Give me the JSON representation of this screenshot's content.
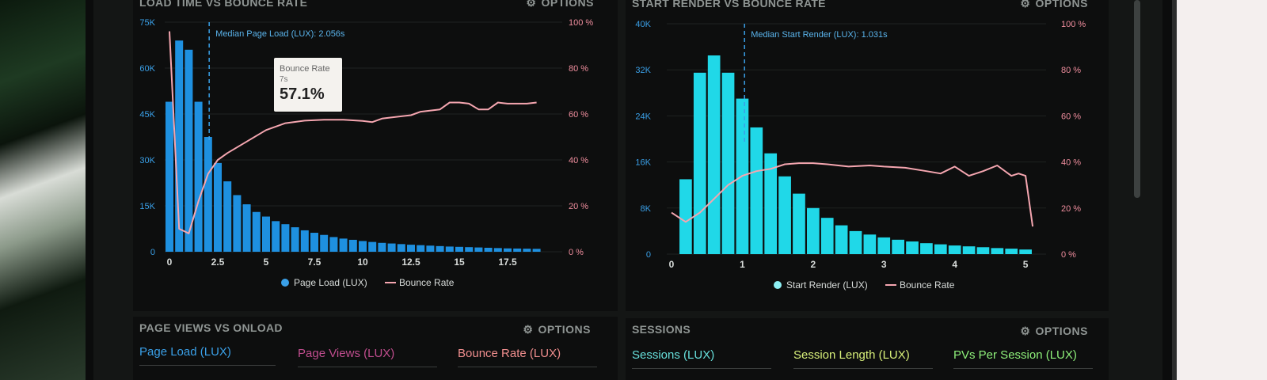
{
  "panels": {
    "load": {
      "title": "LOAD TIME VS BOUNCE RATE",
      "options": "OPTIONS"
    },
    "start": {
      "title": "START RENDER VS BOUNCE RATE",
      "options": "OPTIONS"
    },
    "pageviews": {
      "title": "PAGE VIEWS VS ONLOAD",
      "options": "OPTIONS",
      "tabs": [
        {
          "label": "Page Load (LUX)",
          "color": "#3aa0e8"
        },
        {
          "label": "Page Views (LUX)",
          "color": "#c04d8e"
        },
        {
          "label": "Bounce Rate (LUX)",
          "color": "#f08e8e"
        }
      ]
    },
    "sessions": {
      "title": "SESSIONS",
      "options": "OPTIONS",
      "tabs": [
        {
          "label": "Sessions (LUX)",
          "color": "#67e0dc"
        },
        {
          "label": "Session Length (LUX)",
          "color": "#d8f07a"
        },
        {
          "label": "PVs Per Session (LUX)",
          "color": "#8ef07a"
        }
      ]
    }
  },
  "tooltip": {
    "label": "Bounce Rate",
    "sub": "7s",
    "value": "57.1%"
  },
  "colors": {
    "bar_blue": "#1e90e0",
    "bar_cyan": "#20d8e8",
    "line_pink": "#f5a6b0",
    "axis_text_left": "#3aa0e8",
    "axis_text_right": "#f08e9e"
  },
  "chart_data": [
    {
      "type": "bar",
      "title": "LOAD TIME VS BOUNCE RATE",
      "annotation": "Median Page Load (LUX): 2.056s",
      "median": 2.056,
      "x_ticks": [
        "0",
        "2.5",
        "5",
        "7.5",
        "10",
        "12.5",
        "15",
        "17.5"
      ],
      "y_ticks_left": [
        "0",
        "15K",
        "30K",
        "45K",
        "60K",
        "75K"
      ],
      "y_ticks_right": [
        "0 %",
        "20 %",
        "40 %",
        "60 %",
        "80 %",
        "100 %"
      ],
      "ylim_left": [
        0,
        75000
      ],
      "ylim_right": [
        0,
        100
      ],
      "xlim": [
        0,
        20
      ],
      "bin_width": 0.5,
      "series": [
        {
          "name": "Page Load (LUX)",
          "kind": "bar",
          "x": [
            0,
            0.5,
            1,
            1.5,
            2,
            2.5,
            3,
            3.5,
            4,
            4.5,
            5,
            5.5,
            6,
            6.5,
            7,
            7.5,
            8,
            8.5,
            9,
            9.5,
            10,
            10.5,
            11,
            11.5,
            12,
            12.5,
            13,
            13.5,
            14,
            14.5,
            15,
            15.5,
            16,
            16.5,
            17,
            17.5,
            18,
            18.5,
            19
          ],
          "values": [
            49000,
            69000,
            66000,
            49000,
            37500,
            29000,
            23000,
            18500,
            15500,
            13000,
            11500,
            10000,
            9000,
            8000,
            7000,
            6200,
            5500,
            4800,
            4300,
            3900,
            3500,
            3200,
            2900,
            2700,
            2500,
            2300,
            2150,
            2000,
            1850,
            1700,
            1600,
            1500,
            1400,
            1300,
            1200,
            1100,
            1050,
            1000,
            950
          ]
        },
        {
          "name": "Bounce Rate",
          "kind": "line",
          "x": [
            0,
            0.5,
            1,
            1.5,
            2,
            2.5,
            3,
            4,
            5,
            6,
            7,
            8,
            9,
            10,
            10.5,
            11,
            12,
            12.5,
            13,
            14,
            14.5,
            15,
            15.5,
            16,
            16.5,
            17,
            17.5,
            18,
            18.5,
            19
          ],
          "values": [
            96,
            10,
            8,
            22,
            34,
            40,
            43,
            48,
            53,
            56,
            57.1,
            57.5,
            57.5,
            57,
            56.5,
            58,
            59,
            59.5,
            61,
            62,
            65,
            65,
            64.5,
            62,
            62,
            65,
            64.5,
            64.5,
            64.5,
            65
          ]
        }
      ]
    },
    {
      "type": "bar",
      "title": "START RENDER VS BOUNCE RATE",
      "annotation": "Median Start Render (LUX): 1.031s",
      "median": 1.031,
      "x_ticks": [
        "0",
        "1",
        "2",
        "3",
        "4",
        "5"
      ],
      "y_ticks_left": [
        "0",
        "8K",
        "16K",
        "24K",
        "32K",
        "40K"
      ],
      "y_ticks_right": [
        "0 %",
        "20 %",
        "40 %",
        "60 %",
        "80 %",
        "100 %"
      ],
      "ylim_left": [
        0,
        40000
      ],
      "ylim_right": [
        0,
        100
      ],
      "xlim": [
        0,
        5.2
      ],
      "bin_width": 0.2,
      "series": [
        {
          "name": "Start Render (LUX)",
          "kind": "bar",
          "x": [
            0.2,
            0.4,
            0.6,
            0.8,
            1.0,
            1.2,
            1.4,
            1.6,
            1.8,
            2.0,
            2.2,
            2.4,
            2.6,
            2.8,
            3.0,
            3.2,
            3.4,
            3.6,
            3.8,
            4.0,
            4.2,
            4.4,
            4.6,
            4.8,
            5.0
          ],
          "values": [
            13000,
            31500,
            34500,
            31500,
            27000,
            22000,
            17500,
            13500,
            10500,
            8000,
            6300,
            5000,
            4000,
            3400,
            2900,
            2500,
            2200,
            1900,
            1700,
            1500,
            1350,
            1200,
            1050,
            950,
            800
          ]
        },
        {
          "name": "Bounce Rate",
          "kind": "line",
          "x": [
            0,
            0.2,
            0.4,
            0.6,
            0.8,
            1.0,
            1.2,
            1.4,
            1.6,
            1.8,
            2.0,
            2.2,
            2.5,
            2.8,
            3.0,
            3.3,
            3.6,
            3.8,
            4.0,
            4.2,
            4.4,
            4.6,
            4.8,
            4.9,
            5.0,
            5.1
          ],
          "values": [
            18,
            14,
            18,
            24,
            30,
            34,
            36,
            37,
            39,
            39.5,
            39.5,
            39,
            38,
            38.5,
            38,
            37.5,
            36,
            35,
            38,
            34,
            36,
            38.5,
            34,
            35,
            34,
            12
          ]
        }
      ]
    }
  ]
}
